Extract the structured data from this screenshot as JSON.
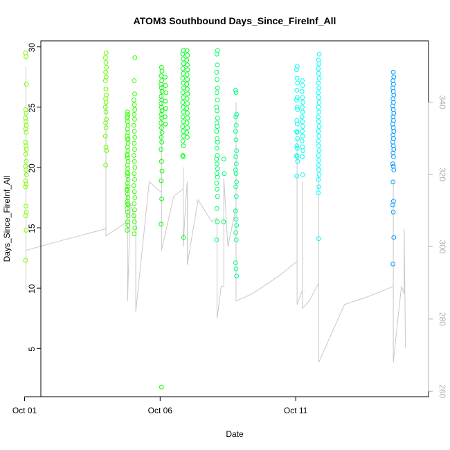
{
  "chart_data": {
    "type": "scatter",
    "title": "ATOM3 Southbound Days_Since_FireInf_All",
    "xlabel": "Date",
    "ylabel": "Days_Since_FireInf_All",
    "x_ticks": [
      "Oct 01",
      "Oct 06",
      "Oct 11"
    ],
    "x_range_days": [
      0.6,
      14.9
    ],
    "ylim": [
      1,
      30.5
    ],
    "y_ticks": [
      5,
      10,
      15,
      20,
      25,
      30
    ],
    "y2lim": [
      258.5,
      357
    ],
    "y2_ticks": [
      260,
      280,
      300,
      320,
      340
    ],
    "grid": false,
    "colors": {
      "axis": "#000000",
      "secondary_axis": "#b0b0b0",
      "trace_line": "#c8c8c8"
    },
    "point_series": [
      {
        "x": 0.05,
        "color": "#80ff00",
        "values": [
          29.5,
          29.2,
          26.9,
          24.8,
          24.5,
          24.1,
          23.8,
          23.5,
          23.2,
          22.9,
          22.1,
          21.8,
          21.5,
          21.1,
          20.5,
          20.1,
          19.8,
          19.4,
          18.9,
          18.6,
          18.4,
          16.8,
          16.3,
          16.0,
          14.8,
          12.3
        ]
      },
      {
        "x": 3.0,
        "color": "#66ff00",
        "values": [
          29.5,
          29.1,
          28.7,
          28.3,
          27.9,
          27.5,
          27.2,
          26.5,
          26.0,
          25.7,
          25.4,
          25.0,
          24.6,
          24.0,
          23.7,
          23.3,
          22.6,
          21.7,
          21.4,
          20.2
        ]
      },
      {
        "x": 3.8,
        "color": "#33ff00",
        "values": [
          24.6,
          24.4,
          24.1,
          23.8,
          23.5,
          23.2,
          22.9,
          22.6,
          22.3,
          22.0,
          21.7,
          21.4,
          21.1,
          20.8,
          20.5,
          20.2,
          19.9,
          19.6,
          19.3,
          19.0,
          18.7,
          18.4,
          18.1,
          17.8,
          17.5,
          17.2,
          16.9,
          16.6,
          16.3,
          16.0,
          15.5,
          15.2,
          14.8,
          24.2,
          22.4,
          21.0,
          19.5,
          18.2,
          17.0
        ]
      },
      {
        "x": 4.05,
        "color": "#33ff00",
        "values": [
          29.1,
          27.2,
          26.1,
          25.6,
          25.2,
          24.8,
          24.4,
          24.0,
          23.5,
          23.0,
          22.5,
          22.0,
          21.5,
          21.0,
          20.5,
          20.0,
          19.5,
          19.0,
          18.5,
          18.0,
          17.5,
          17.0,
          16.5,
          16.0,
          15.5,
          15.0,
          14.5
        ]
      },
      {
        "x": 5.05,
        "color": "#00ff00",
        "values": [
          28.3,
          28.0,
          27.6,
          27.2,
          26.9,
          26.6,
          26.3,
          25.9,
          25.6,
          25.3,
          25.0,
          24.7,
          24.4,
          24.1,
          23.7,
          23.3,
          22.9,
          22.5,
          22.1,
          21.5,
          20.5,
          19.7,
          18.9,
          17.4,
          15.3,
          1.8
        ]
      },
      {
        "x": 5.2,
        "color": "#00ff00",
        "values": [
          27.5,
          26.8,
          26.2,
          25.5,
          24.9,
          24.2,
          23.6
        ]
      },
      {
        "x": 5.85,
        "color": "#00ff22",
        "values": [
          29.7,
          29.4,
          29.0,
          28.6,
          28.2,
          27.8,
          27.4,
          27.0,
          26.6,
          26.2,
          25.8,
          25.4,
          25.0,
          24.6,
          24.2,
          23.8,
          23.4,
          23.0,
          22.6,
          22.2,
          21.8,
          21.0,
          20.9,
          14.2
        ]
      },
      {
        "x": 6.0,
        "color": "#00ff22",
        "values": [
          29.7,
          29.3,
          28.9,
          28.5,
          28.1,
          27.7,
          27.3,
          26.9,
          26.5,
          26.1,
          25.7,
          25.3,
          24.9,
          24.5,
          24.1,
          23.7,
          23.3,
          22.9,
          22.5
        ]
      },
      {
        "x": 7.1,
        "color": "#00ff66",
        "values": [
          29.7,
          29.4,
          28.5,
          27.9,
          27.3,
          26.6,
          26.2,
          25.6,
          25.0,
          24.7,
          24.1,
          23.7,
          23.4,
          23.0,
          22.4,
          22.1,
          21.6,
          21.0,
          20.7,
          20.3,
          19.9,
          19.5,
          19.2,
          18.7,
          18.2,
          17.6,
          16.6,
          15.5,
          14.0
        ]
      },
      {
        "x": 7.35,
        "color": "#00ff66",
        "values": [
          20.7,
          19.5,
          15.5
        ]
      },
      {
        "x": 7.8,
        "color": "#00ff88",
        "values": [
          26.4,
          26.2,
          24.4,
          24.2,
          23.5,
          23.0,
          22.3,
          21.4,
          20.9,
          20.3,
          19.8,
          19.5,
          18.8,
          18.4,
          17.6,
          16.4,
          15.7,
          15.2,
          14.6,
          14.0,
          12.1,
          11.6,
          11.0
        ]
      },
      {
        "x": 10.05,
        "color": "#00ffee",
        "values": [
          28.4,
          28.1,
          27.4,
          27.0,
          26.4,
          25.8,
          25.6,
          25.0,
          24.8,
          23.9,
          23.6,
          23.0,
          22.9,
          22.4,
          21.8,
          21.6,
          21.0,
          20.9,
          20.5,
          19.3
        ]
      },
      {
        "x": 10.25,
        "color": "#00ffee",
        "values": [
          27.2,
          26.8,
          26.3,
          25.8,
          25.4,
          25.0,
          24.6,
          24.2,
          23.8,
          23.4,
          23.0,
          22.6,
          22.2,
          21.7,
          21.4,
          20.9,
          19.4
        ]
      },
      {
        "x": 10.85,
        "color": "#00ffff",
        "values": [
          29.4,
          28.9,
          28.6,
          28.2,
          27.8,
          27.4,
          27.0,
          26.6,
          26.2,
          25.8,
          25.4,
          25.0,
          24.6,
          24.2,
          23.8,
          23.4,
          23.0,
          22.6,
          22.2,
          21.8,
          21.4,
          21.0,
          20.6,
          20.2,
          19.8,
          19.4,
          19.0,
          18.4,
          17.9,
          14.1
        ]
      },
      {
        "x": 13.6,
        "color": "#0099ff",
        "values": [
          27.9,
          27.5,
          27.2,
          26.9,
          26.6,
          26.3,
          26.0,
          25.7,
          25.4,
          25.1,
          24.8,
          24.5,
          24.2,
          23.9,
          23.6,
          23.3,
          23.0,
          22.7,
          22.4,
          22.1,
          21.8,
          21.5,
          21.2,
          20.9,
          20.3,
          20.1,
          19.8,
          18.8,
          17.2,
          16.9,
          16.3,
          14.2,
          12.0
        ]
      }
    ],
    "trace_line_y2": [
      [
        0.05,
        288
      ],
      [
        0.05,
        350
      ],
      [
        0.05,
        299
      ],
      [
        1.0,
        301
      ],
      [
        2.0,
        303
      ],
      [
        3.0,
        305
      ],
      [
        3.0,
        340
      ],
      [
        3.0,
        303
      ],
      [
        3.4,
        305
      ],
      [
        3.8,
        307
      ],
      [
        3.8,
        320
      ],
      [
        3.8,
        285
      ],
      [
        3.9,
        312
      ],
      [
        4.05,
        308
      ],
      [
        4.1,
        308
      ],
      [
        4.1,
        282
      ],
      [
        4.6,
        318
      ],
      [
        5.05,
        315
      ],
      [
        5.05,
        345
      ],
      [
        5.05,
        299
      ],
      [
        5.5,
        314
      ],
      [
        5.85,
        316
      ],
      [
        5.85,
        322
      ],
      [
        5.85,
        300
      ],
      [
        5.95,
        313
      ],
      [
        6.0,
        318
      ],
      [
        6.0,
        295
      ],
      [
        6.4,
        313
      ],
      [
        6.9,
        307
      ],
      [
        7.1,
        308
      ],
      [
        7.1,
        280
      ],
      [
        7.25,
        289
      ],
      [
        7.35,
        289
      ],
      [
        7.35,
        319
      ],
      [
        7.5,
        300
      ],
      [
        7.8,
        311
      ],
      [
        7.8,
        340
      ],
      [
        7.8,
        285
      ],
      [
        8.4,
        287
      ],
      [
        9.4,
        292
      ],
      [
        10.05,
        296
      ],
      [
        10.05,
        330
      ],
      [
        10.05,
        284
      ],
      [
        10.25,
        288
      ],
      [
        10.25,
        318
      ],
      [
        10.25,
        283
      ],
      [
        10.5,
        285
      ],
      [
        10.85,
        290
      ],
      [
        10.85,
        320
      ],
      [
        10.85,
        268
      ],
      [
        11.8,
        284
      ],
      [
        12.6,
        286
      ],
      [
        13.6,
        289
      ],
      [
        13.6,
        318
      ],
      [
        13.6,
        268
      ],
      [
        13.9,
        289
      ],
      [
        14.0,
        287
      ],
      [
        14.0,
        305
      ],
      [
        14.05,
        272
      ]
    ]
  }
}
